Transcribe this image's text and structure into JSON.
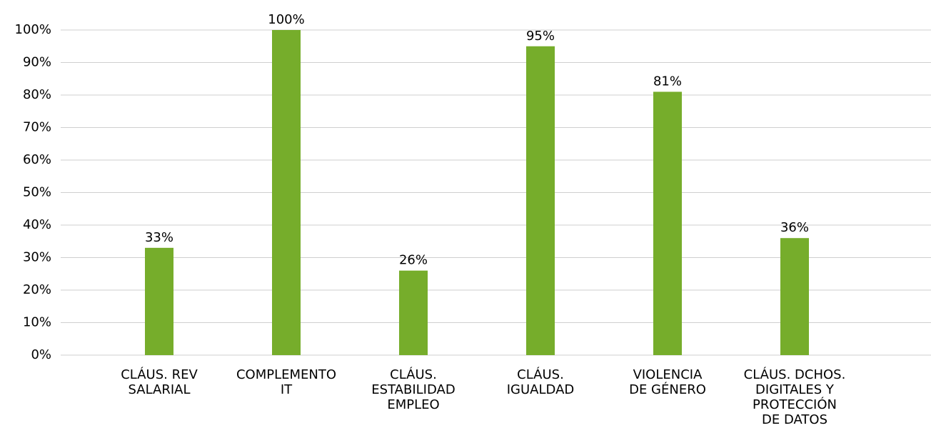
{
  "chart_data": {
    "type": "bar",
    "categories": [
      [
        "CLÁUS. REV",
        "SALARIAL"
      ],
      [
        "COMPLEMENTO",
        "IT"
      ],
      [
        "CLÁUS.",
        "ESTABILIDAD",
        "EMPLEO"
      ],
      [
        "CLÁUS.",
        "IGUALDAD"
      ],
      [
        "VIOLENCIA",
        "DE GÉNERO"
      ],
      [
        "CLÁUS. DCHOS.",
        "DIGITALES Y",
        "PROTECCIÓN",
        "DE DATOS"
      ]
    ],
    "values": [
      33,
      100,
      26,
      95,
      81,
      36
    ],
    "value_labels": [
      "33%",
      "100%",
      "26%",
      "95%",
      "81%",
      "36%"
    ],
    "color": "#76ad2b",
    "ylim": [
      0,
      100
    ],
    "yticks": [
      {
        "value": 0,
        "label": "0%"
      },
      {
        "value": 10,
        "label": "10%"
      },
      {
        "value": 20,
        "label": "20%"
      },
      {
        "value": 30,
        "label": "30%"
      },
      {
        "value": 40,
        "label": "40%"
      },
      {
        "value": 50,
        "label": "50%"
      },
      {
        "value": 60,
        "label": "60%"
      },
      {
        "value": 70,
        "label": "70%"
      },
      {
        "value": 80,
        "label": "80%"
      },
      {
        "value": 90,
        "label": "90%"
      },
      {
        "value": 100,
        "label": "100%"
      }
    ],
    "grid": true
  }
}
